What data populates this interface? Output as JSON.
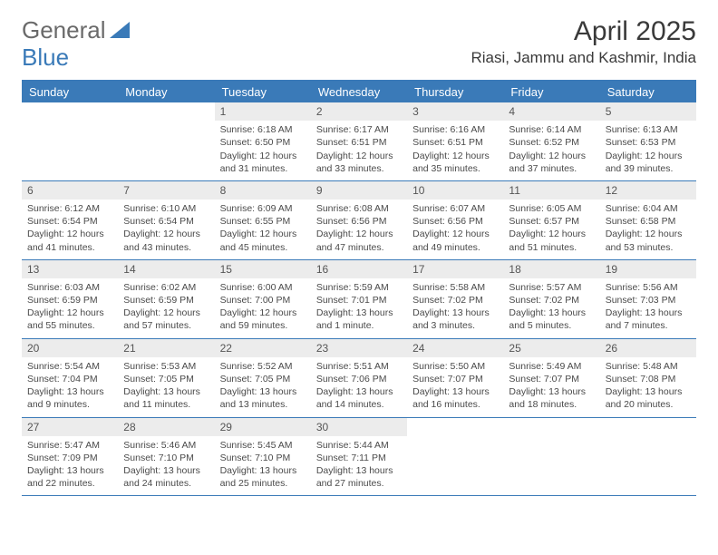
{
  "brand": {
    "part1": "General",
    "part2": "Blue"
  },
  "title": "April 2025",
  "location": "Riasi, Jammu and Kashmir, India",
  "colors": {
    "header_bg": "#3a7ab8",
    "header_text": "#ffffff",
    "daynum_bg": "#ececec",
    "border": "#3a7ab8",
    "body_text": "#4a4a4a",
    "title_text": "#3a3a3a",
    "logo_gray": "#6a6a6a"
  },
  "calendar": {
    "type": "table",
    "columns": [
      "Sunday",
      "Monday",
      "Tuesday",
      "Wednesday",
      "Thursday",
      "Friday",
      "Saturday"
    ],
    "weeks": [
      [
        null,
        null,
        {
          "num": "1",
          "sunrise": "Sunrise: 6:18 AM",
          "sunset": "Sunset: 6:50 PM",
          "daylight": "Daylight: 12 hours and 31 minutes."
        },
        {
          "num": "2",
          "sunrise": "Sunrise: 6:17 AM",
          "sunset": "Sunset: 6:51 PM",
          "daylight": "Daylight: 12 hours and 33 minutes."
        },
        {
          "num": "3",
          "sunrise": "Sunrise: 6:16 AM",
          "sunset": "Sunset: 6:51 PM",
          "daylight": "Daylight: 12 hours and 35 minutes."
        },
        {
          "num": "4",
          "sunrise": "Sunrise: 6:14 AM",
          "sunset": "Sunset: 6:52 PM",
          "daylight": "Daylight: 12 hours and 37 minutes."
        },
        {
          "num": "5",
          "sunrise": "Sunrise: 6:13 AM",
          "sunset": "Sunset: 6:53 PM",
          "daylight": "Daylight: 12 hours and 39 minutes."
        }
      ],
      [
        {
          "num": "6",
          "sunrise": "Sunrise: 6:12 AM",
          "sunset": "Sunset: 6:54 PM",
          "daylight": "Daylight: 12 hours and 41 minutes."
        },
        {
          "num": "7",
          "sunrise": "Sunrise: 6:10 AM",
          "sunset": "Sunset: 6:54 PM",
          "daylight": "Daylight: 12 hours and 43 minutes."
        },
        {
          "num": "8",
          "sunrise": "Sunrise: 6:09 AM",
          "sunset": "Sunset: 6:55 PM",
          "daylight": "Daylight: 12 hours and 45 minutes."
        },
        {
          "num": "9",
          "sunrise": "Sunrise: 6:08 AM",
          "sunset": "Sunset: 6:56 PM",
          "daylight": "Daylight: 12 hours and 47 minutes."
        },
        {
          "num": "10",
          "sunrise": "Sunrise: 6:07 AM",
          "sunset": "Sunset: 6:56 PM",
          "daylight": "Daylight: 12 hours and 49 minutes."
        },
        {
          "num": "11",
          "sunrise": "Sunrise: 6:05 AM",
          "sunset": "Sunset: 6:57 PM",
          "daylight": "Daylight: 12 hours and 51 minutes."
        },
        {
          "num": "12",
          "sunrise": "Sunrise: 6:04 AM",
          "sunset": "Sunset: 6:58 PM",
          "daylight": "Daylight: 12 hours and 53 minutes."
        }
      ],
      [
        {
          "num": "13",
          "sunrise": "Sunrise: 6:03 AM",
          "sunset": "Sunset: 6:59 PM",
          "daylight": "Daylight: 12 hours and 55 minutes."
        },
        {
          "num": "14",
          "sunrise": "Sunrise: 6:02 AM",
          "sunset": "Sunset: 6:59 PM",
          "daylight": "Daylight: 12 hours and 57 minutes."
        },
        {
          "num": "15",
          "sunrise": "Sunrise: 6:00 AM",
          "sunset": "Sunset: 7:00 PM",
          "daylight": "Daylight: 12 hours and 59 minutes."
        },
        {
          "num": "16",
          "sunrise": "Sunrise: 5:59 AM",
          "sunset": "Sunset: 7:01 PM",
          "daylight": "Daylight: 13 hours and 1 minute."
        },
        {
          "num": "17",
          "sunrise": "Sunrise: 5:58 AM",
          "sunset": "Sunset: 7:02 PM",
          "daylight": "Daylight: 13 hours and 3 minutes."
        },
        {
          "num": "18",
          "sunrise": "Sunrise: 5:57 AM",
          "sunset": "Sunset: 7:02 PM",
          "daylight": "Daylight: 13 hours and 5 minutes."
        },
        {
          "num": "19",
          "sunrise": "Sunrise: 5:56 AM",
          "sunset": "Sunset: 7:03 PM",
          "daylight": "Daylight: 13 hours and 7 minutes."
        }
      ],
      [
        {
          "num": "20",
          "sunrise": "Sunrise: 5:54 AM",
          "sunset": "Sunset: 7:04 PM",
          "daylight": "Daylight: 13 hours and 9 minutes."
        },
        {
          "num": "21",
          "sunrise": "Sunrise: 5:53 AM",
          "sunset": "Sunset: 7:05 PM",
          "daylight": "Daylight: 13 hours and 11 minutes."
        },
        {
          "num": "22",
          "sunrise": "Sunrise: 5:52 AM",
          "sunset": "Sunset: 7:05 PM",
          "daylight": "Daylight: 13 hours and 13 minutes."
        },
        {
          "num": "23",
          "sunrise": "Sunrise: 5:51 AM",
          "sunset": "Sunset: 7:06 PM",
          "daylight": "Daylight: 13 hours and 14 minutes."
        },
        {
          "num": "24",
          "sunrise": "Sunrise: 5:50 AM",
          "sunset": "Sunset: 7:07 PM",
          "daylight": "Daylight: 13 hours and 16 minutes."
        },
        {
          "num": "25",
          "sunrise": "Sunrise: 5:49 AM",
          "sunset": "Sunset: 7:07 PM",
          "daylight": "Daylight: 13 hours and 18 minutes."
        },
        {
          "num": "26",
          "sunrise": "Sunrise: 5:48 AM",
          "sunset": "Sunset: 7:08 PM",
          "daylight": "Daylight: 13 hours and 20 minutes."
        }
      ],
      [
        {
          "num": "27",
          "sunrise": "Sunrise: 5:47 AM",
          "sunset": "Sunset: 7:09 PM",
          "daylight": "Daylight: 13 hours and 22 minutes."
        },
        {
          "num": "28",
          "sunrise": "Sunrise: 5:46 AM",
          "sunset": "Sunset: 7:10 PM",
          "daylight": "Daylight: 13 hours and 24 minutes."
        },
        {
          "num": "29",
          "sunrise": "Sunrise: 5:45 AM",
          "sunset": "Sunset: 7:10 PM",
          "daylight": "Daylight: 13 hours and 25 minutes."
        },
        {
          "num": "30",
          "sunrise": "Sunrise: 5:44 AM",
          "sunset": "Sunset: 7:11 PM",
          "daylight": "Daylight: 13 hours and 27 minutes."
        },
        null,
        null,
        null
      ]
    ]
  }
}
